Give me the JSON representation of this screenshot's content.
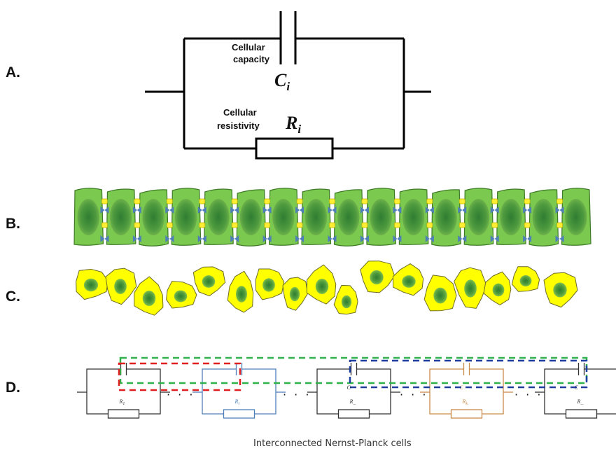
{
  "panels": {
    "a": {
      "letter": "A.",
      "capacity_line1": "Cellular",
      "capacity_line2": "capacity",
      "resistivity_line1": "Cellular",
      "resistivity_line2": "resistivity",
      "cap_symbol": "C",
      "cap_sub": "i",
      "res_symbol": "R",
      "res_sub": "i"
    },
    "b": {
      "letter": "B."
    },
    "c": {
      "letter": "C."
    },
    "d": {
      "letter": "D.",
      "ellipsis": "· · ·",
      "units": [
        {
          "res_label": "R",
          "res_sub": "1",
          "cap_label": "",
          "color": "#333333"
        },
        {
          "res_label": "R",
          "res_sub": "i",
          "cap_label": "",
          "color": "#4f7fb8"
        },
        {
          "res_label": "R",
          "res_sub": "...",
          "cap_label": "C",
          "color": "#333333"
        },
        {
          "res_label": "R",
          "res_sub": "k",
          "cap_label": "C",
          "color": "#c98a4a"
        },
        {
          "res_label": "R",
          "res_sub": "...",
          "cap_label": "C",
          "color": "#333333"
        }
      ],
      "caption": "Interconnected Nernst-Planck cells"
    }
  },
  "colors": {
    "cell_green": "#7cc94f",
    "cell_green_border": "#3c7a25",
    "nucleus_dark": "#3f8f3a",
    "cell_yellow": "#ffff00",
    "junction_blue": "#4f7fb8",
    "junction_yellow": "#ffee33",
    "box_red": "#e02020",
    "box_green": "#2fb24a",
    "box_blue": "#1f3fa0"
  }
}
